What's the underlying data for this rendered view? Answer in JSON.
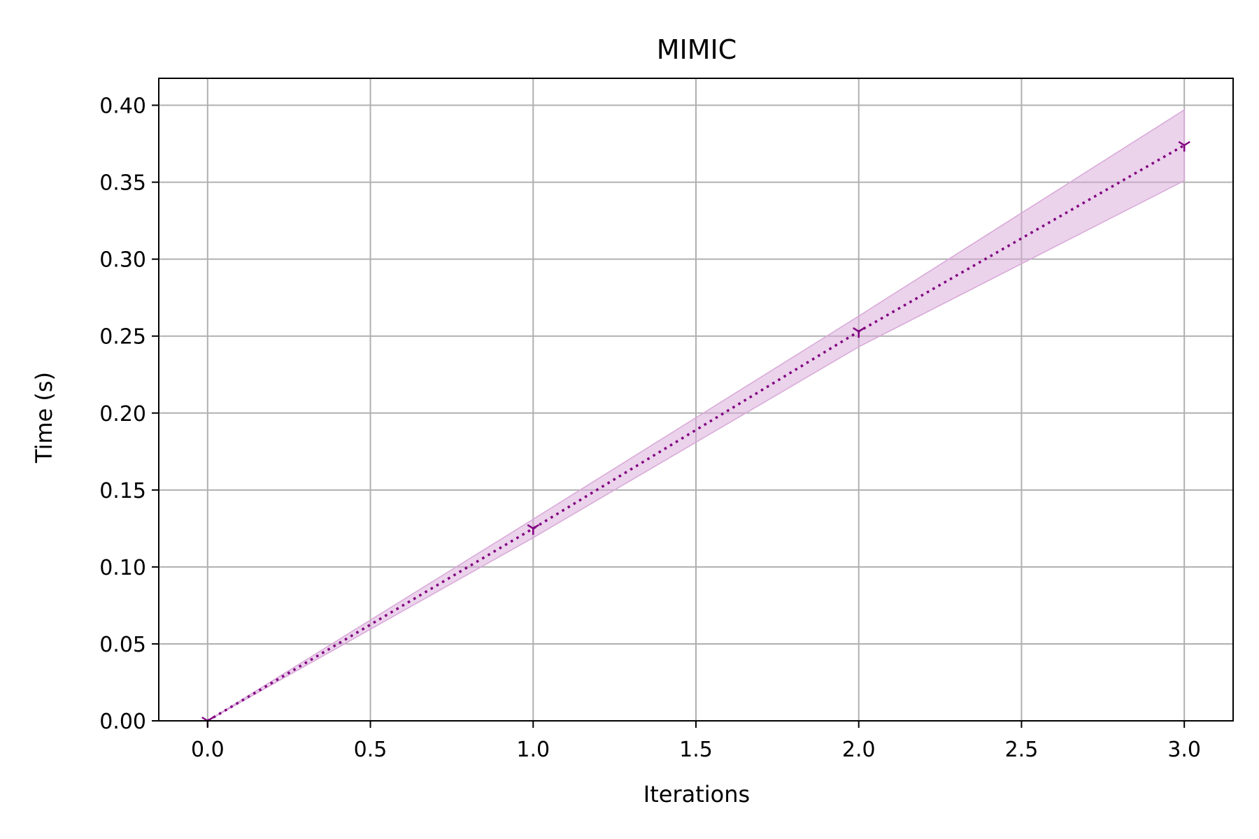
{
  "chart_data": {
    "type": "line",
    "title": "MIMIC",
    "xlabel": "Iterations",
    "ylabel": "Time (s)",
    "xlim": [
      -0.15,
      3.15
    ],
    "ylim": [
      0.0,
      0.4175
    ],
    "xticks": [
      0.0,
      0.5,
      1.0,
      1.5,
      2.0,
      2.5,
      3.0
    ],
    "xtick_labels": [
      "0.0",
      "0.5",
      "1.0",
      "1.5",
      "2.0",
      "2.5",
      "3.0"
    ],
    "yticks": [
      0.0,
      0.05,
      0.1,
      0.15,
      0.2,
      0.25,
      0.3,
      0.35,
      0.4
    ],
    "ytick_labels": [
      "0.00",
      "0.05",
      "0.10",
      "0.15",
      "0.20",
      "0.25",
      "0.30",
      "0.35",
      "0.40"
    ],
    "grid": true,
    "series": [
      {
        "x": [
          0,
          1,
          2,
          3
        ],
        "y": [
          0.0,
          0.125,
          0.253,
          0.374
        ],
        "band_low": [
          0.0,
          0.119,
          0.243,
          0.351
        ],
        "band_high": [
          0.0,
          0.131,
          0.263,
          0.397
        ],
        "color": "#800080",
        "band_color": "#d8a8d8",
        "line_style": "dotted",
        "marker": "tri_down"
      }
    ]
  }
}
